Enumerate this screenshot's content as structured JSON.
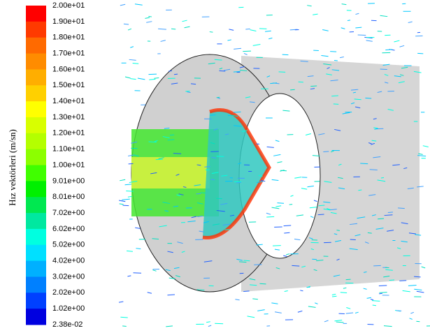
{
  "colorbar": {
    "title": "Hız vektörleri (m/sn)",
    "labels": [
      "2.00e+01",
      "1.90e+01",
      "1.80e+01",
      "1.70e+01",
      "1.60e+01",
      "1.50e+01",
      "1.40e+01",
      "1.30e+01",
      "1.20e+01",
      "1.10e+01",
      "1.00e+01",
      "9.01e+00",
      "8.01e+00",
      "7.02e+00",
      "6.02e+00",
      "5.02e+00",
      "4.02e+00",
      "3.02e+00",
      "2.02e+00",
      "1.02e+00",
      "2.38e-02"
    ],
    "colors": [
      "#ff0000",
      "#ff3a00",
      "#ff6a00",
      "#ff8c00",
      "#ffae00",
      "#ffd000",
      "#ffff00",
      "#d8ff00",
      "#b4ff00",
      "#8cff00",
      "#40ff00",
      "#00f000",
      "#00e850",
      "#00e8a0",
      "#00ffe0",
      "#00e0ff",
      "#00b0ff",
      "#0080ff",
      "#0040ff",
      "#0000e0"
    ]
  }
}
